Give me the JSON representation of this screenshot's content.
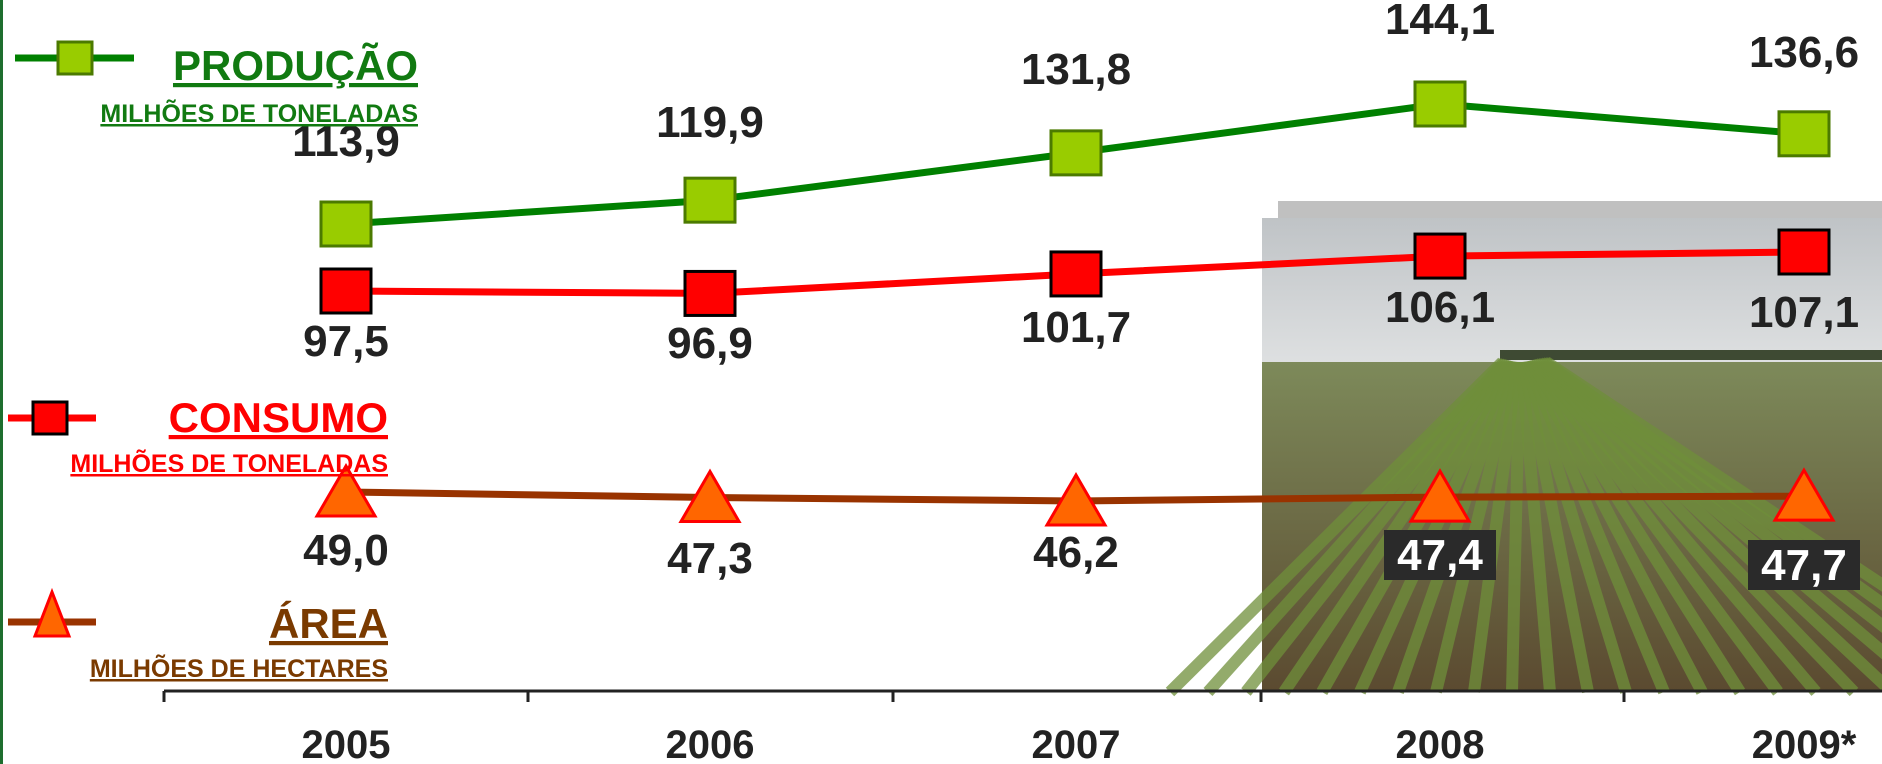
{
  "chart_data": {
    "type": "line",
    "categories": [
      "2005",
      "2006",
      "2007",
      "2008",
      "2009*"
    ],
    "series": [
      {
        "name": "PRODUÇÃO",
        "unit": "MILHÕES DE TONELADAS",
        "color": "#008000",
        "marker": "square",
        "marker_fill": "#99cc00",
        "values": [
          113.9,
          119.9,
          131.8,
          144.1,
          136.6
        ],
        "value_labels": [
          "113,9",
          "119,9",
          "131,8",
          "144,1",
          "136,6"
        ]
      },
      {
        "name": "CONSUMO",
        "unit": "MILHÕES DE TONELADAS",
        "color": "#ff0000",
        "marker": "square",
        "marker_fill": "#ff0000",
        "values": [
          97.5,
          96.9,
          101.7,
          106.1,
          107.1
        ],
        "value_labels": [
          "97,5",
          "96,9",
          "101,7",
          "106,1",
          "107,1"
        ]
      },
      {
        "name": "ÁREA",
        "unit": "MILHÕES DE HECTARES",
        "color": "#993300",
        "marker": "triangle",
        "marker_fill": "#ff6600",
        "values": [
          49.0,
          47.3,
          46.2,
          47.4,
          47.7
        ],
        "value_labels": [
          "49,0",
          "47,3",
          "46,2",
          "47,4",
          "47,7"
        ]
      }
    ],
    "legend_placement": "left",
    "grid": false,
    "background_image": "soybean-field-photo"
  }
}
